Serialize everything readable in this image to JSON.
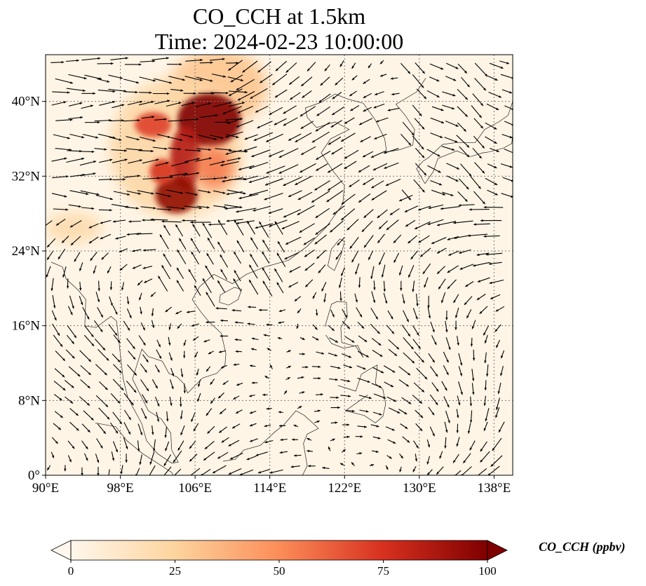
{
  "figure": {
    "title_line1": "CO_CCH at 1.5km",
    "title_line2": "Time: 2024-02-23 10:00:00"
  },
  "map": {
    "projection": "PlateCarree",
    "lon_range": [
      90,
      140
    ],
    "lat_range": [
      0,
      45
    ],
    "lon_ticks": [
      90,
      98,
      106,
      114,
      122,
      130,
      138
    ],
    "lon_tick_labels": [
      "90°E",
      "98°E",
      "106°E",
      "114°E",
      "122°E",
      "130°E",
      "138°E"
    ],
    "lat_ticks": [
      0,
      8,
      16,
      24,
      32,
      40
    ],
    "lat_tick_labels": [
      "0°",
      "8°N",
      "16°N",
      "24°N",
      "32°N",
      "40°N"
    ],
    "gridlines": true,
    "overlay": "wind vectors"
  },
  "colorbar": {
    "title": "CO_CCH (ppbv)",
    "ticks": [
      0,
      25,
      50,
      75,
      100
    ],
    "tick_labels": [
      "0",
      "25",
      "50",
      "75",
      "100"
    ],
    "extend": "both",
    "colormap": "OrRd",
    "colors": [
      "#fff7ec",
      "#fdd49e",
      "#fc8d59",
      "#d7301f",
      "#7f0000"
    ]
  },
  "fields": {
    "background_color": "#fff5e6",
    "plume_regions": [
      {
        "lon": 107.5,
        "lat": 38.0,
        "value": 100
      },
      {
        "lon": 104.0,
        "lat": 30.0,
        "value": 95
      },
      {
        "lon": 101.5,
        "lat": 37.5,
        "value": 70
      },
      {
        "lon": 108.0,
        "lat": 33.0,
        "value": 60
      },
      {
        "lon": 110.5,
        "lat": 41.0,
        "value": 40
      },
      {
        "lon": 93.0,
        "lat": 26.0,
        "value": 20
      }
    ]
  }
}
